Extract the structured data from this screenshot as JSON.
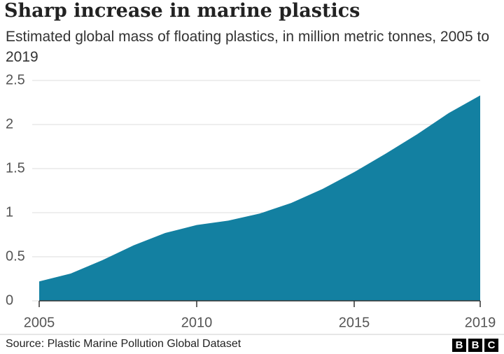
{
  "chart_data": {
    "type": "area",
    "title": "Sharp increase in marine plastics",
    "subtitle": "Estimated global mass of floating plastics, in million metric tonnes, 2005 to 2019",
    "source": "Source: Plastic Marine Pollution Global Dataset",
    "logo": [
      "B",
      "B",
      "C"
    ],
    "x": [
      2005,
      2006,
      2007,
      2008,
      2009,
      2010,
      2011,
      2012,
      2013,
      2014,
      2015,
      2016,
      2017,
      2018,
      2019
    ],
    "values": [
      0.22,
      0.31,
      0.46,
      0.63,
      0.77,
      0.86,
      0.91,
      0.99,
      1.11,
      1.27,
      1.46,
      1.67,
      1.89,
      2.13,
      2.33
    ],
    "color": "#1380a1",
    "xlim": [
      2005,
      2019
    ],
    "xticks": [
      2005,
      2010,
      2015,
      2019
    ],
    "ylim": [
      0,
      2.5
    ],
    "yticks": [
      0,
      0.5,
      1,
      1.5,
      2,
      2.5
    ],
    "grid": true
  }
}
